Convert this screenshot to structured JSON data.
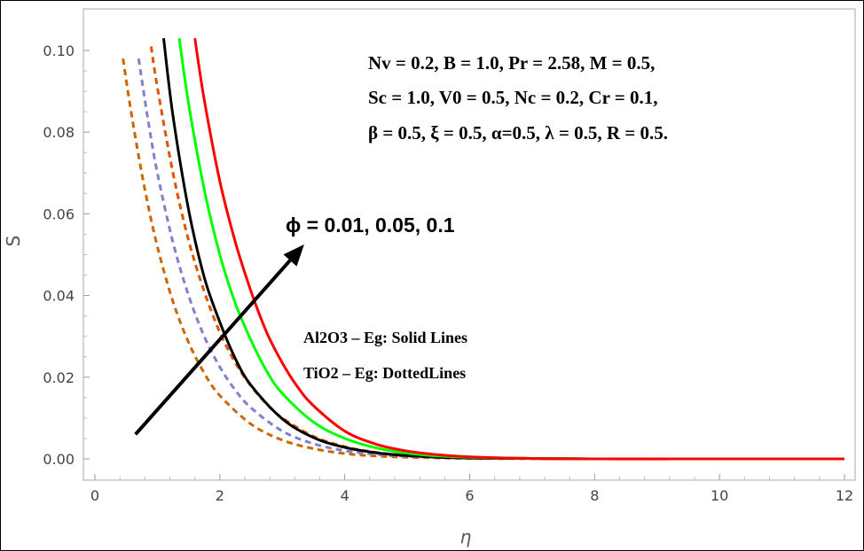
{
  "chart_data": {
    "type": "line",
    "title": "",
    "xlabel": "η",
    "ylabel": "S",
    "xlim": [
      0,
      12
    ],
    "ylim": [
      0,
      0.11
    ],
    "grid": false,
    "x_ticks": [
      {
        "value": 0,
        "label": "0"
      },
      {
        "value": 2,
        "label": "2"
      },
      {
        "value": 4,
        "label": "4"
      },
      {
        "value": 6,
        "label": "6"
      },
      {
        "value": 8,
        "label": "8"
      },
      {
        "value": 10,
        "label": "10"
      },
      {
        "value": 12,
        "label": "12"
      }
    ],
    "y_ticks": [
      {
        "value": 0.0,
        "label": "0.00"
      },
      {
        "value": 0.02,
        "label": "0.02"
      },
      {
        "value": 0.04,
        "label": "0.04"
      },
      {
        "value": 0.06,
        "label": "0.06"
      },
      {
        "value": 0.08,
        "label": "0.08"
      },
      {
        "value": 0.1,
        "label": "0.10"
      }
    ],
    "series": [
      {
        "name": "Al2O3-Eg, φ = 0.01",
        "style": "solid",
        "color": "#000000",
        "x": [
          1.1,
          1.25,
          1.5,
          1.75,
          2.0,
          2.25,
          2.5,
          3.0,
          3.5,
          4.0,
          4.5,
          5.0,
          5.5,
          6.0,
          7.0,
          8.0,
          10.0,
          12.0
        ],
        "y": [
          0.103,
          0.084,
          0.061,
          0.0445,
          0.0335,
          0.0245,
          0.018,
          0.0098,
          0.0052,
          0.0028,
          0.0015,
          0.0008,
          0.0004,
          0.0002,
          0.0001,
          0.0,
          0.0,
          0.0
        ]
      },
      {
        "name": "Al2O3-Eg, φ = 0.05",
        "style": "solid",
        "color": "#00ff00",
        "x": [
          1.35,
          1.5,
          1.75,
          2.0,
          2.25,
          2.5,
          2.75,
          3.0,
          3.5,
          4.0,
          4.5,
          5.0,
          5.5,
          6.0,
          7.0,
          8.0,
          10.0,
          12.0
        ],
        "y": [
          0.103,
          0.087,
          0.066,
          0.05,
          0.038,
          0.029,
          0.0215,
          0.016,
          0.009,
          0.005,
          0.0027,
          0.0014,
          0.0007,
          0.0004,
          0.0001,
          0.0,
          0.0,
          0.0
        ]
      },
      {
        "name": "Al2O3-Eg, φ = 0.1",
        "style": "solid",
        "color": "#ff0000",
        "x": [
          1.6,
          1.75,
          2.0,
          2.25,
          2.5,
          2.75,
          3.0,
          3.25,
          3.5,
          4.0,
          4.5,
          5.0,
          5.5,
          6.0,
          7.0,
          8.0,
          10.0,
          12.0
        ],
        "y": [
          0.103,
          0.088,
          0.068,
          0.053,
          0.041,
          0.031,
          0.0235,
          0.0175,
          0.013,
          0.0068,
          0.0036,
          0.0019,
          0.001,
          0.0005,
          0.0001,
          0.0,
          0.0,
          0.0
        ]
      },
      {
        "name": "TiO2-Eg, φ = 0.01",
        "style": "dotted",
        "color": "#cc6600",
        "x": [
          0.45,
          0.6,
          0.8,
          1.0,
          1.25,
          1.5,
          1.75,
          2.0,
          2.5,
          3.0,
          3.5,
          4.0,
          4.5,
          5.0,
          6.0,
          8.0,
          10.0,
          12.0
        ],
        "y": [
          0.098,
          0.083,
          0.066,
          0.052,
          0.0385,
          0.0285,
          0.021,
          0.0155,
          0.0085,
          0.0046,
          0.0025,
          0.0013,
          0.0007,
          0.0004,
          0.0001,
          0.0,
          0.0,
          0.0
        ]
      },
      {
        "name": "TiO2-Eg, φ = 0.05",
        "style": "dotted",
        "color": "#8080cc",
        "x": [
          0.7,
          0.85,
          1.0,
          1.25,
          1.5,
          1.75,
          2.0,
          2.25,
          2.5,
          3.0,
          3.5,
          4.0,
          4.5,
          5.0,
          6.0,
          8.0,
          10.0,
          12.0
        ],
        "y": [
          0.098,
          0.083,
          0.07,
          0.053,
          0.04,
          0.03,
          0.0225,
          0.0168,
          0.0125,
          0.0068,
          0.0037,
          0.002,
          0.0011,
          0.0006,
          0.0002,
          0.0,
          0.0,
          0.0
        ]
      },
      {
        "name": "TiO2-Eg, φ = 0.1",
        "style": "dotted",
        "color": "#dd5500",
        "x": [
          0.9,
          1.0,
          1.25,
          1.5,
          1.75,
          2.0,
          2.25,
          2.5,
          2.75,
          3.0,
          3.5,
          4.0,
          4.5,
          5.0,
          6.0,
          8.0,
          10.0,
          12.0
        ],
        "y": [
          0.101,
          0.091,
          0.07,
          0.0535,
          0.041,
          0.031,
          0.0235,
          0.0178,
          0.0134,
          0.01,
          0.0055,
          0.003,
          0.0016,
          0.0009,
          0.0003,
          0.0,
          0.0,
          0.0
        ]
      }
    ],
    "annotations": {
      "params_line1": "Nv = 0.2, B = 1.0, Pr = 2.58, M = 0.5,",
      "params_line2": "Sc = 1.0, V0 = 0.5, Nc = 0.2, Cr = 0.1,",
      "params_line3": "β = 0.5, ξ = 0.5,  α=0.5, λ = 0.5, R = 0.5.",
      "phi_label": "ϕ = 0.01,  0.05,  0.1",
      "legend_solid": "Al2O3 – Eg: Solid Lines",
      "legend_dotted": "TiO2 – Eg: DottedLines",
      "arrow_from": [
        0.65,
        0.006
      ],
      "arrow_to": [
        3.35,
        0.0525
      ]
    }
  }
}
